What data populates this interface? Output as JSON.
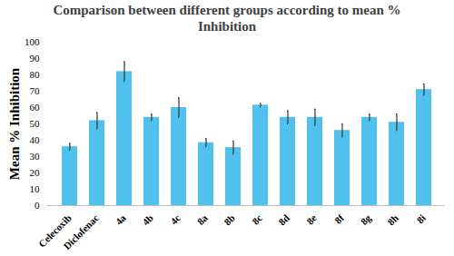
{
  "chart_data": {
    "type": "bar",
    "title": "Comparison between different groups according to mean % Inhibition",
    "y_label": "Mean % Inhibition",
    "categories": [
      "Celecoxib",
      "Diclofenac",
      "4a",
      "4b",
      "4c",
      "8a",
      "8b",
      "8c",
      "8d",
      "8e",
      "8f",
      "8g",
      "8h",
      "8i"
    ],
    "values": [
      36,
      52,
      82,
      54,
      60,
      38.5,
      35.5,
      61.5,
      54,
      54,
      46,
      54,
      51,
      71
    ],
    "errors": [
      2,
      5,
      6,
      2,
      6,
      2.5,
      4,
      1,
      4,
      5,
      4,
      2,
      5,
      3.5
    ],
    "color": "#4fc1ec",
    "ylim": [
      0,
      100
    ],
    "yticks": [
      0,
      10,
      20,
      30,
      40,
      50,
      60,
      70,
      80,
      90,
      100
    ],
    "grid": false
  }
}
